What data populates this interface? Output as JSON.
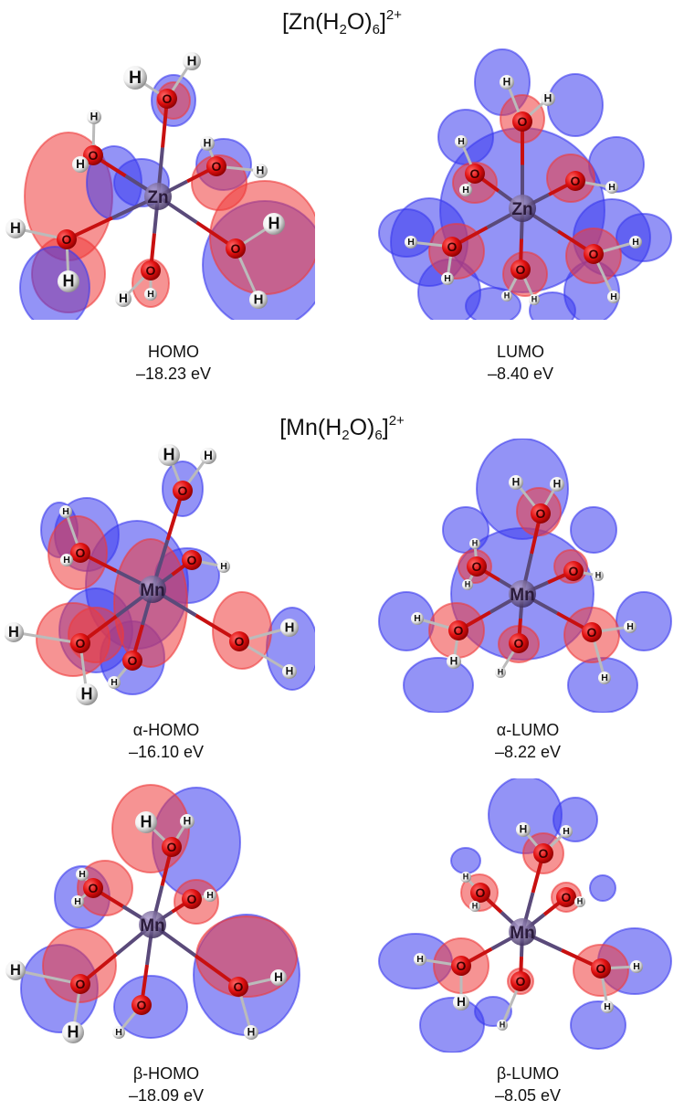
{
  "colors": {
    "positive_lobe": "#ee3b3b",
    "negative_lobe": "#3b3bee",
    "oxygen": "#e01010",
    "hydrogen": "#f2f2f2",
    "metal": "#7a6a9a"
  },
  "complexes": [
    {
      "formula": {
        "open": "[Zn(H",
        "sub": "2",
        "mid": "O)",
        "sub2": "6",
        "close": "]",
        "sup": "2+"
      },
      "metal_symbol": "Zn",
      "orbitals": [
        {
          "label": "HOMO",
          "energy": "–18.23 eV"
        },
        {
          "label": "LUMO",
          "energy": "–8.40 eV"
        }
      ]
    },
    {
      "formula": {
        "open": "[Mn(H",
        "sub": "2",
        "mid": "O)",
        "sub2": "6",
        "close": "]",
        "sup": "2+"
      },
      "metal_symbol": "Mn",
      "orbitals": [
        {
          "label": "α-HOMO",
          "energy": "–16.10 eV"
        },
        {
          "label": "α-LUMO",
          "energy": "–8.22 eV"
        },
        {
          "label": "β-HOMO",
          "energy": "–18.09 eV"
        },
        {
          "label": "β-LUMO",
          "energy": "–8.05 eV"
        }
      ]
    }
  ],
  "atoms": {
    "oxygen": "O",
    "hydrogen": "H"
  }
}
